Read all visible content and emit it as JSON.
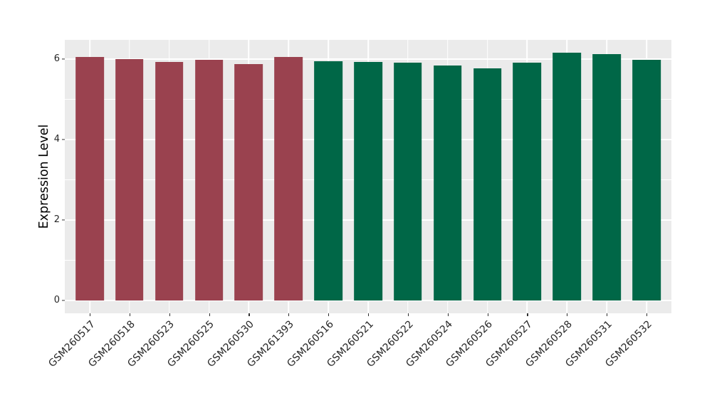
{
  "figure": {
    "background": "#FFFFFF",
    "panel_background": "#EBEBEB",
    "grid_color": "#FFFFFF",
    "axis_text_color": "#262626",
    "axis_title_color": "#000000",
    "tick_mark_color": "#333333"
  },
  "chart_data": {
    "type": "bar",
    "title": "",
    "xlabel": "",
    "ylabel": "Expression Level",
    "ylim": [
      -0.3,
      6.5
    ],
    "yticks": [
      0,
      2,
      4,
      6
    ],
    "yticks_minor": [
      1,
      3,
      5
    ],
    "grid": "major and minor horizontal white gridlines plus vertical white gridline per category, drawn beneath bars on gray panel",
    "legend_position": "none",
    "x_tick_label_rotation_deg": 45,
    "bar_groups": [
      {
        "name": "group-1-maroon",
        "color": "#9A424F",
        "samples": [
          "GSM260517",
          "GSM260518",
          "GSM260523",
          "GSM260525",
          "GSM260530",
          "GSM261393"
        ]
      },
      {
        "name": "group-2-green",
        "color": "#006747",
        "samples": [
          "GSM260516",
          "GSM260521",
          "GSM260522",
          "GSM260524",
          "GSM260526",
          "GSM260527",
          "GSM260528",
          "GSM260531",
          "GSM260532"
        ]
      }
    ],
    "categories": [
      "GSM260517",
      "GSM260518",
      "GSM260523",
      "GSM260525",
      "GSM260530",
      "GSM261393",
      "GSM260516",
      "GSM260521",
      "GSM260522",
      "GSM260524",
      "GSM260526",
      "GSM260527",
      "GSM260528",
      "GSM260531",
      "GSM260532"
    ],
    "values": [
      6.05,
      6.0,
      5.92,
      5.98,
      5.87,
      6.05,
      5.94,
      5.92,
      5.91,
      5.84,
      5.77,
      5.91,
      6.15,
      6.12,
      5.98
    ],
    "bars": [
      {
        "label": "GSM260517",
        "value": 6.05,
        "color": "#9A424F"
      },
      {
        "label": "GSM260518",
        "value": 6.0,
        "color": "#9A424F"
      },
      {
        "label": "GSM260523",
        "value": 5.92,
        "color": "#9A424F"
      },
      {
        "label": "GSM260525",
        "value": 5.98,
        "color": "#9A424F"
      },
      {
        "label": "GSM260530",
        "value": 5.87,
        "color": "#9A424F"
      },
      {
        "label": "GSM261393",
        "value": 6.05,
        "color": "#9A424F"
      },
      {
        "label": "GSM260516",
        "value": 5.94,
        "color": "#006747"
      },
      {
        "label": "GSM260521",
        "value": 5.92,
        "color": "#006747"
      },
      {
        "label": "GSM260522",
        "value": 5.91,
        "color": "#006747"
      },
      {
        "label": "GSM260524",
        "value": 5.84,
        "color": "#006747"
      },
      {
        "label": "GSM260526",
        "value": 5.77,
        "color": "#006747"
      },
      {
        "label": "GSM260527",
        "value": 5.91,
        "color": "#006747"
      },
      {
        "label": "GSM260528",
        "value": 6.15,
        "color": "#006747"
      },
      {
        "label": "GSM260531",
        "value": 6.12,
        "color": "#006747"
      },
      {
        "label": "GSM260532",
        "value": 5.98,
        "color": "#006747"
      }
    ]
  }
}
